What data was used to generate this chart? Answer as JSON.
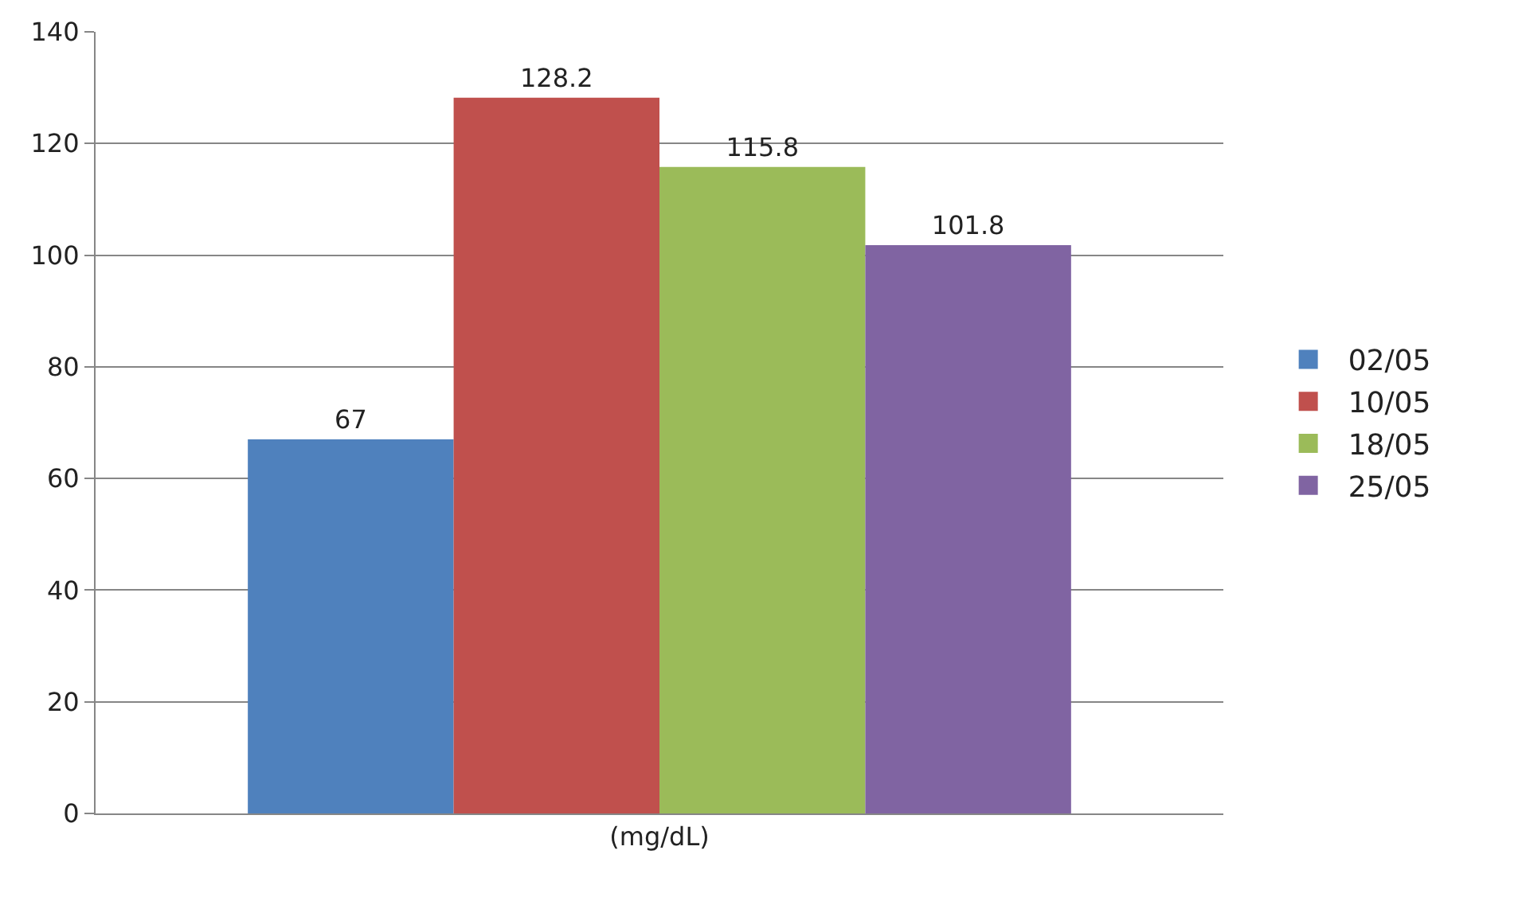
{
  "chart_data": {
    "type": "bar",
    "categories": [
      "(mg/dL)"
    ],
    "series": [
      {
        "name": "02/05",
        "color": "#4f81bd",
        "values": [
          67
        ]
      },
      {
        "name": "10/05",
        "color": "#c0504d",
        "values": [
          128.2
        ]
      },
      {
        "name": "18/05",
        "color": "#9bbb59",
        "values": [
          115.8
        ]
      },
      {
        "name": "25/05",
        "color": "#8064a2",
        "values": [
          101.8
        ]
      }
    ],
    "ylim": [
      0,
      140
    ],
    "yticks": [
      0,
      20,
      40,
      60,
      80,
      100,
      120,
      140
    ],
    "grid": "y",
    "legend": "right",
    "data_labels": true
  }
}
